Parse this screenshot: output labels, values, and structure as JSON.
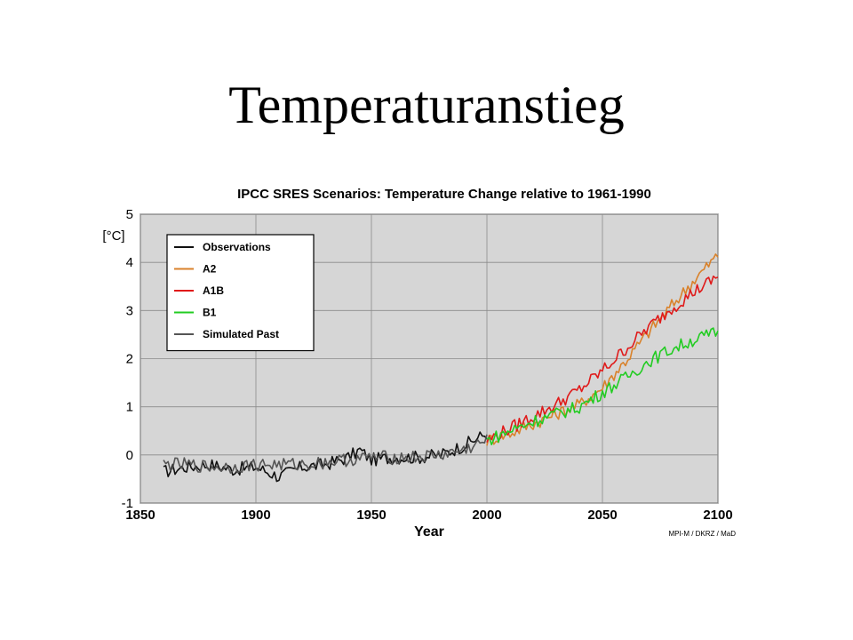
{
  "slide": {
    "title": "Temperaturanstieg"
  },
  "chart_data": {
    "type": "line",
    "title": "IPCC SRES Scenarios: Temperature Change relative to 1961-1990",
    "xlabel": "Year",
    "ylabel": "[°C]",
    "credit": "MPI-M / DKRZ / MaD",
    "xlim": [
      1850,
      2100
    ],
    "ylim": [
      -1,
      5
    ],
    "x_ticks": [
      "1850",
      "1900",
      "1950",
      "2000",
      "2050",
      "2100"
    ],
    "y_ticks": [
      "-1",
      "0",
      "1",
      "2",
      "3",
      "4",
      "5"
    ],
    "grid": true,
    "legend_position": "top-left",
    "background": "#d6d6d6",
    "series": [
      {
        "name": "Observations",
        "color": "#111111",
        "x": [
          1860,
          1870,
          1880,
          1890,
          1900,
          1910,
          1920,
          1930,
          1940,
          1945,
          1950,
          1960,
          1970,
          1980,
          1990,
          2000
        ],
        "y": [
          -0.35,
          -0.25,
          -0.2,
          -0.3,
          -0.25,
          -0.45,
          -0.25,
          -0.2,
          -0.05,
          0.1,
          -0.1,
          -0.05,
          -0.05,
          0.0,
          0.2,
          0.45
        ]
      },
      {
        "name": "A2",
        "color": "#d9822b",
        "x": [
          2000,
          2010,
          2020,
          2030,
          2040,
          2050,
          2060,
          2070,
          2080,
          2090,
          2100
        ],
        "y": [
          0.3,
          0.45,
          0.65,
          0.85,
          1.05,
          1.4,
          1.95,
          2.55,
          3.1,
          3.65,
          4.15
        ]
      },
      {
        "name": "A1B",
        "color": "#e01a1a",
        "x": [
          2000,
          2010,
          2020,
          2030,
          2040,
          2050,
          2060,
          2070,
          2080,
          2090,
          2100
        ],
        "y": [
          0.3,
          0.55,
          0.8,
          1.05,
          1.35,
          1.75,
          2.2,
          2.65,
          3.05,
          3.4,
          3.7
        ]
      },
      {
        "name": "B1",
        "color": "#22cc22",
        "x": [
          2000,
          2010,
          2020,
          2030,
          2040,
          2050,
          2060,
          2070,
          2080,
          2090,
          2100
        ],
        "y": [
          0.3,
          0.5,
          0.7,
          0.85,
          1.0,
          1.3,
          1.6,
          1.95,
          2.2,
          2.4,
          2.55
        ]
      },
      {
        "name": "Simulated Past",
        "color": "#555555",
        "x": [
          1860,
          1870,
          1880,
          1890,
          1900,
          1910,
          1920,
          1930,
          1940,
          1950,
          1960,
          1970,
          1980,
          1990,
          2000
        ],
        "y": [
          -0.2,
          -0.2,
          -0.25,
          -0.25,
          -0.2,
          -0.2,
          -0.2,
          -0.15,
          -0.1,
          -0.05,
          -0.05,
          -0.05,
          0.0,
          0.1,
          0.3
        ]
      }
    ]
  }
}
